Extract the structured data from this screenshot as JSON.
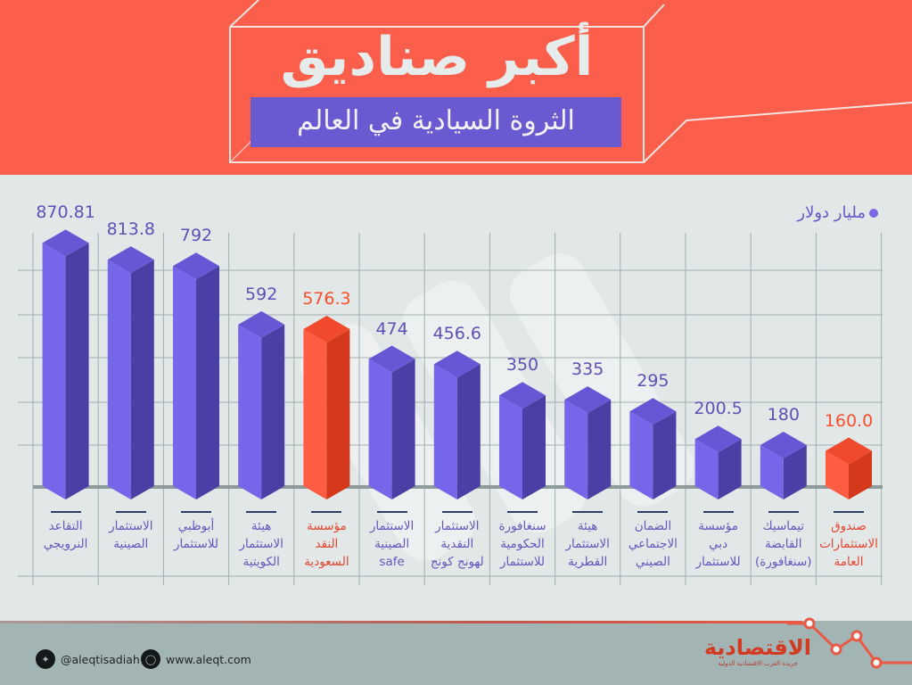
{
  "header": {
    "title": "أكبر صناديق",
    "subtitle": "الثروة السيادية في العالم"
  },
  "legend": {
    "label": "مليار دولار",
    "dot_color": "#7a68e4"
  },
  "colors": {
    "bar_front": "#7666ea",
    "bar_side": "#4a3fa4",
    "bar_top": "#6658d4",
    "highlight_front": "#ff5d43",
    "highlight_side": "#d5391c",
    "highlight_top": "#f0492c",
    "header_bg": "#fb5e4a",
    "subtitle_bg": "#6a5ad2"
  },
  "chart_data": {
    "type": "bar",
    "title": "أكبر صناديق الثروة السيادية في العالم",
    "ylabel": "مليار دولار",
    "xlabel": "",
    "ylim": [
      0,
      900
    ],
    "grid": true,
    "legend_position": "top-right",
    "categories": [
      "التقاعد النرويجي",
      "الاستثمار الصينية",
      "أبوظبي للاستثمار",
      "هيئة الاستثمار الكويتية",
      "مؤسسة النقد السعودية",
      "الاستثمار الصينية safe",
      "الاستثمار النقدية لهونج كونج",
      "سنغافورة الحكومية للاستثمار",
      "هيئة الاستثمار القطرية",
      "الضمان الاجتماعي الصيني",
      "مؤسسة دبي للاستثمار",
      "تيماسيك القابضة (سنغافورة)",
      "صندوق الاستثمارات العامة"
    ],
    "values": [
      870.81,
      813.8,
      792,
      592,
      576.3,
      474,
      456.6,
      350,
      335,
      295,
      200.5,
      180,
      160.0
    ],
    "value_labels": [
      "870.81",
      "813.8",
      "792",
      "592",
      "576.3",
      "474",
      "456.6",
      "350",
      "335",
      "295",
      "200.5",
      "180",
      "160.0"
    ],
    "highlighted": [
      4,
      12
    ]
  },
  "bars": [
    {
      "value": "870.81",
      "lines": [
        "التقاعد",
        "النرويجي"
      ]
    },
    {
      "value": "813.8",
      "lines": [
        "الاستثمار",
        "الصينية"
      ]
    },
    {
      "value": "792",
      "lines": [
        "أبوظبي",
        "للاستثمار"
      ]
    },
    {
      "value": "592",
      "lines": [
        "هيئة",
        "الاستثمار",
        "الكويتية"
      ]
    },
    {
      "value": "576.3",
      "lines": [
        "مؤسسة",
        "النقد",
        "السعودية"
      ]
    },
    {
      "value": "474",
      "lines": [
        "الاستثمار",
        "الصينية",
        "safe"
      ]
    },
    {
      "value": "456.6",
      "lines": [
        "الاستثمار",
        "النقدية",
        "لهونج كونج"
      ]
    },
    {
      "value": "350",
      "lines": [
        "سنغافورة",
        "الحكومية",
        "للاستثمار"
      ]
    },
    {
      "value": "335",
      "lines": [
        "هيئة",
        "الاستثمار",
        "القطرية"
      ]
    },
    {
      "value": "295",
      "lines": [
        "الضمان",
        "الاجتماعي",
        "الصيني"
      ]
    },
    {
      "value": "200.5",
      "lines": [
        "مؤسسة",
        "دبي",
        "للاستثمار"
      ]
    },
    {
      "value": "180",
      "lines": [
        "تيماسيك",
        "القابضة",
        "(سنغافورة)"
      ]
    },
    {
      "value": "160.0",
      "lines": [
        "صندوق",
        "الاستثمارات",
        "العامة"
      ]
    }
  ],
  "footer": {
    "twitter": "@aleqtisadiah",
    "website": "www.aleqt.com",
    "brand_name": "الاقتصادية",
    "brand_tagline": "جريدة العرب الاقتصادية الدولية"
  }
}
